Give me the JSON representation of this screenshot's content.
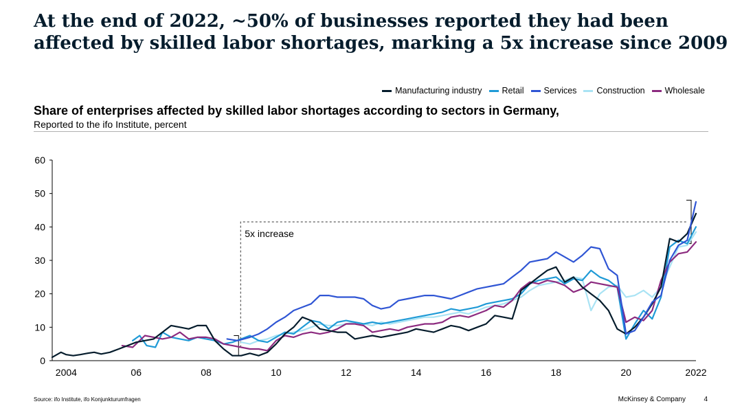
{
  "headline": {
    "line1": "At the end of 2022, ~50% of businesses reported they had been",
    "line2": "affected by skilled labor shortages, marking a 5x increase since 2009"
  },
  "colors": {
    "manufacturing": "#051c2c",
    "retail": "#1f9ad6",
    "services": "#2f55d4",
    "construction": "#a9e3f4",
    "wholesale": "#8c2a7f"
  },
  "chart_data": {
    "type": "line",
    "title": "Share of enterprises affected by skilled labor shortages according to sectors in Germany,",
    "subtitle": "Reported to the ifo Institute, percent",
    "xlabel": "",
    "ylabel": "",
    "xlim": [
      2003.6,
      2022
    ],
    "ylim": [
      0,
      60
    ],
    "yticks": [
      0,
      10,
      20,
      30,
      40,
      50,
      60
    ],
    "xticks": [
      {
        "value": 2004,
        "label": "2004"
      },
      {
        "value": 2006,
        "label": "06"
      },
      {
        "value": 2008,
        "label": "08"
      },
      {
        "value": 2010,
        "label": "10"
      },
      {
        "value": 2012,
        "label": "12"
      },
      {
        "value": 2014,
        "label": "14"
      },
      {
        "value": 2016,
        "label": "16"
      },
      {
        "value": 2018,
        "label": "18"
      },
      {
        "value": 2020,
        "label": "20"
      },
      {
        "value": 2022,
        "label": "2022"
      }
    ],
    "legend_position": "top-right",
    "series": [
      {
        "name": "Manufacturing industry",
        "color_key": "manufacturing",
        "x": [
          2003.6,
          2003.85,
          2004.0,
          2004.2,
          2004.4,
          2004.6,
          2004.8,
          2005.0,
          2005.25,
          2005.5,
          2005.75,
          2006.0,
          2006.25,
          2006.5,
          2006.75,
          2007.0,
          2007.25,
          2007.5,
          2007.75,
          2008.0,
          2008.25,
          2008.5,
          2008.75,
          2009.0,
          2009.25,
          2009.5,
          2009.75,
          2010.0,
          2010.25,
          2010.5,
          2010.75,
          2011.0,
          2011.25,
          2011.5,
          2011.75,
          2012.0,
          2012.25,
          2012.5,
          2012.75,
          2013.0,
          2013.25,
          2013.5,
          2013.75,
          2014.0,
          2014.25,
          2014.5,
          2014.75,
          2015.0,
          2015.25,
          2015.5,
          2015.75,
          2016.0,
          2016.25,
          2016.5,
          2016.75,
          2017.0,
          2017.25,
          2017.5,
          2017.75,
          2018.0,
          2018.25,
          2018.5,
          2018.75,
          2019.0,
          2019.25,
          2019.5,
          2019.75,
          2020.0,
          2020.25,
          2020.5,
          2020.75,
          2021.0,
          2021.25,
          2021.5,
          2021.75,
          2022.0
        ],
        "y": [
          1.0,
          2.5,
          1.8,
          1.5,
          1.8,
          2.2,
          2.5,
          2.0,
          2.5,
          3.5,
          4.5,
          5.5,
          6.0,
          6.5,
          8.5,
          10.5,
          10.0,
          9.5,
          10.5,
          10.5,
          6.0,
          3.5,
          1.5,
          1.5,
          2.2,
          1.5,
          2.5,
          5.0,
          8.0,
          10.0,
          13.0,
          12.0,
          9.5,
          9.0,
          8.5,
          8.5,
          6.5,
          7.0,
          7.5,
          7.0,
          7.5,
          8.0,
          8.5,
          9.5,
          9.0,
          8.5,
          9.5,
          10.5,
          10.0,
          9.0,
          10.0,
          11.0,
          13.5,
          13.0,
          12.5,
          21.0,
          23.0,
          25.0,
          27.0,
          28.0,
          23.5,
          25.0,
          22.0,
          20.0,
          18.0,
          15.0,
          9.5,
          8.0,
          10.0,
          13.0,
          17.0,
          22.0,
          36.5,
          35.5,
          38.0,
          44.0
        ]
      },
      {
        "name": "Retail",
        "color_key": "retail",
        "x": [
          2005.9,
          2006.1,
          2006.3,
          2006.55,
          2006.75,
          2007.0,
          2007.25,
          2007.5,
          2007.75,
          2008.0,
          2008.25,
          2008.5,
          2008.75,
          2009.0,
          2009.25,
          2009.5,
          2009.75,
          2010.0,
          2010.25,
          2010.5,
          2010.75,
          2011.0,
          2011.25,
          2011.5,
          2011.75,
          2012.0,
          2012.25,
          2012.5,
          2012.75,
          2013.0,
          2013.25,
          2013.5,
          2013.75,
          2014.0,
          2014.25,
          2014.5,
          2014.75,
          2015.0,
          2015.25,
          2015.5,
          2015.75,
          2016.0,
          2016.25,
          2016.5,
          2016.75,
          2017.0,
          2017.25,
          2017.5,
          2017.75,
          2018.0,
          2018.25,
          2018.5,
          2018.75,
          2019.0,
          2019.25,
          2019.5,
          2019.75,
          2020.0,
          2020.25,
          2020.5,
          2020.75,
          2021.0,
          2021.25,
          2021.5,
          2021.75,
          2022.0
        ],
        "y": [
          6.0,
          7.5,
          4.5,
          4.0,
          8.5,
          7.0,
          6.5,
          6.0,
          7.0,
          6.5,
          6.0,
          5.0,
          5.5,
          6.5,
          7.5,
          6.0,
          5.5,
          7.0,
          8.5,
          8.0,
          10.0,
          12.0,
          11.5,
          9.5,
          11.5,
          12.0,
          11.5,
          11.0,
          11.5,
          11.0,
          11.5,
          12.0,
          12.5,
          13.0,
          13.5,
          14.0,
          14.5,
          15.5,
          15.0,
          15.5,
          16.0,
          17.0,
          17.5,
          18.0,
          18.5,
          20.0,
          23.0,
          24.0,
          24.5,
          25.0,
          23.0,
          24.5,
          24.0,
          27.0,
          25.0,
          24.0,
          22.0,
          6.5,
          11.0,
          15.0,
          12.5,
          19.0,
          34.0,
          36.0,
          35.0,
          40.0
        ]
      },
      {
        "name": "Services",
        "color_key": "services",
        "x": [
          2008.6,
          2008.9,
          2009.25,
          2009.5,
          2009.75,
          2010.0,
          2010.25,
          2010.5,
          2010.75,
          2011.0,
          2011.25,
          2011.5,
          2011.75,
          2012.0,
          2012.25,
          2012.5,
          2012.75,
          2013.0,
          2013.25,
          2013.5,
          2013.75,
          2014.0,
          2014.25,
          2014.5,
          2014.75,
          2015.0,
          2015.25,
          2015.5,
          2015.75,
          2016.0,
          2016.25,
          2016.5,
          2016.75,
          2017.0,
          2017.25,
          2017.5,
          2017.75,
          2018.0,
          2018.25,
          2018.5,
          2018.75,
          2019.0,
          2019.25,
          2019.5,
          2019.75,
          2020.0,
          2020.25,
          2020.5,
          2020.75,
          2021.0,
          2021.25,
          2021.5,
          2021.75,
          2022.0
        ],
        "y": [
          6.5,
          6.0,
          7.0,
          8.0,
          9.5,
          11.5,
          13.0,
          15.0,
          16.0,
          17.0,
          19.5,
          19.5,
          19.0,
          19.0,
          19.0,
          18.5,
          16.5,
          15.5,
          16.0,
          18.0,
          18.5,
          19.0,
          19.5,
          19.5,
          19.0,
          18.5,
          19.5,
          20.5,
          21.5,
          22.0,
          22.5,
          23.0,
          25.0,
          27.0,
          29.5,
          30.0,
          30.5,
          32.5,
          31.0,
          29.5,
          31.5,
          34.0,
          33.5,
          27.5,
          25.5,
          8.0,
          9.0,
          13.0,
          17.5,
          19.5,
          30.0,
          34.5,
          36.0,
          47.5
        ]
      },
      {
        "name": "Construction",
        "color_key": "construction",
        "x": [
          2009.0,
          2009.25,
          2009.5,
          2009.75,
          2010.0,
          2010.25,
          2010.5,
          2010.75,
          2011.0,
          2011.25,
          2011.5,
          2011.75,
          2012.0,
          2012.25,
          2012.5,
          2012.75,
          2013.0,
          2013.25,
          2013.5,
          2013.75,
          2014.0,
          2014.25,
          2014.5,
          2014.75,
          2015.0,
          2015.25,
          2015.5,
          2015.75,
          2016.0,
          2016.25,
          2016.5,
          2016.75,
          2017.0,
          2017.25,
          2017.5,
          2017.75,
          2018.0,
          2018.25,
          2018.5,
          2018.75,
          2019.0,
          2019.25,
          2019.5,
          2019.75,
          2020.0,
          2020.25,
          2020.5,
          2020.75,
          2021.0,
          2021.25,
          2021.5,
          2021.75,
          2022.0
        ],
        "y": [
          5.5,
          5.0,
          6.0,
          6.5,
          7.5,
          8.0,
          8.5,
          9.0,
          10.0,
          11.0,
          10.5,
          10.5,
          11.0,
          11.5,
          11.0,
          10.5,
          11.5,
          11.0,
          11.5,
          12.0,
          12.5,
          13.0,
          13.0,
          13.5,
          14.0,
          14.5,
          14.0,
          15.0,
          16.0,
          16.5,
          17.0,
          18.0,
          19.0,
          21.0,
          22.5,
          23.0,
          23.5,
          24.0,
          25.0,
          24.5,
          15.0,
          20.0,
          22.0,
          22.5,
          19.0,
          19.5,
          21.0,
          19.0,
          22.0,
          28.0,
          34.0,
          34.5,
          38.5
        ]
      },
      {
        "name": "Wholesale",
        "color_key": "wholesale",
        "x": [
          2005.6,
          2005.9,
          2006.25,
          2006.5,
          2006.75,
          2007.0,
          2007.25,
          2007.5,
          2007.75,
          2008.0,
          2008.25,
          2008.5,
          2008.75,
          2009.0,
          2009.25,
          2009.5,
          2009.75,
          2010.0,
          2010.25,
          2010.5,
          2010.75,
          2011.0,
          2011.25,
          2011.5,
          2011.75,
          2012.0,
          2012.25,
          2012.5,
          2012.75,
          2013.0,
          2013.25,
          2013.5,
          2013.75,
          2014.0,
          2014.25,
          2014.5,
          2014.75,
          2015.0,
          2015.25,
          2015.5,
          2015.75,
          2016.0,
          2016.25,
          2016.5,
          2016.75,
          2017.0,
          2017.25,
          2017.5,
          2017.75,
          2018.0,
          2018.25,
          2018.5,
          2018.75,
          2019.0,
          2019.25,
          2019.5,
          2019.75,
          2020.0,
          2020.25,
          2020.5,
          2020.75,
          2021.0,
          2021.25,
          2021.5,
          2021.75,
          2022.0
        ],
        "y": [
          4.5,
          4.0,
          7.5,
          7.0,
          6.5,
          7.0,
          8.5,
          6.5,
          7.0,
          7.0,
          6.5,
          5.0,
          4.5,
          4.0,
          3.5,
          3.5,
          3.0,
          6.0,
          7.5,
          7.0,
          8.0,
          8.5,
          8.0,
          8.5,
          9.5,
          11.0,
          11.0,
          10.5,
          8.5,
          9.0,
          9.5,
          9.0,
          10.0,
          10.5,
          11.0,
          11.0,
          11.5,
          13.0,
          13.5,
          13.0,
          14.0,
          15.0,
          16.5,
          16.0,
          18.0,
          21.5,
          23.5,
          23.0,
          24.0,
          23.5,
          22.5,
          20.5,
          21.5,
          23.5,
          23.0,
          22.5,
          22.0,
          11.5,
          13.0,
          12.0,
          15.0,
          24.0,
          29.5,
          32.0,
          32.5,
          35.5
        ]
      }
    ],
    "annotations": [
      {
        "text": "5x increase",
        "from_x": 2008.75,
        "to_x": 2022.0,
        "level": 41.5
      }
    ]
  },
  "footer": {
    "source": "Source: ifo Institute, ifo Konjunkturumfragen",
    "brand": "McKinsey & Company",
    "page": "4"
  }
}
